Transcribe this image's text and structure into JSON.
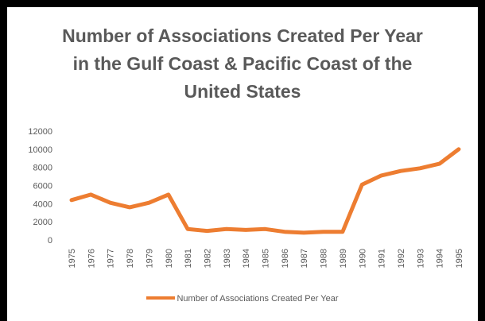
{
  "colors": {
    "series": "#ED7D31",
    "text": "#595959",
    "frame": "#000000",
    "background": "#ffffff"
  },
  "chart_data": {
    "type": "line",
    "title_lines": [
      "Number of Associations Created Per Year",
      "in the Gulf Coast & Pacific Coast of the",
      "United States"
    ],
    "xlabel": "",
    "ylabel": "",
    "ylim": [
      0,
      12000
    ],
    "yticks": [
      "0",
      "2000",
      "4000",
      "6000",
      "8000",
      "10000",
      "12000"
    ],
    "grid": false,
    "legend_position": "bottom",
    "categories": [
      "1975",
      "1976",
      "1977",
      "1978",
      "1979",
      "1980",
      "1981",
      "1982",
      "1983",
      "1984",
      "1985",
      "1986",
      "1987",
      "1988",
      "1989",
      "1990",
      "1991",
      "1992",
      "1993",
      "1994",
      "1995"
    ],
    "series": [
      {
        "name": "Number of Associations Created Per Year",
        "values": [
          4400,
          5000,
          4100,
          3600,
          4100,
          5000,
          1200,
          1000,
          1200,
          1100,
          1200,
          900,
          800,
          900,
          900,
          6100,
          7100,
          7600,
          7900,
          8400,
          10000
        ]
      }
    ]
  }
}
